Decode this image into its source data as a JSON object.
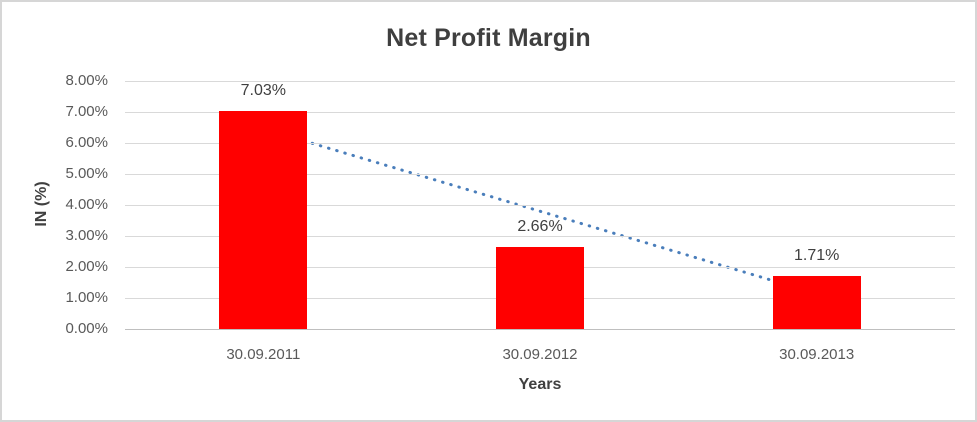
{
  "chart_data": {
    "type": "bar",
    "title": "Net Profit Margin",
    "xlabel": "Years",
    "ylabel": "IN (%)",
    "categories": [
      "30.09.2011",
      "30.09.2012",
      "30.09.2013"
    ],
    "values": [
      7.03,
      2.66,
      1.71
    ],
    "data_labels": [
      "7.03%",
      "2.66%",
      "1.71%"
    ],
    "ylim": [
      0,
      8
    ],
    "ytick_labels": [
      "8.00%",
      "7.00%",
      "6.00%",
      "5.00%",
      "4.00%",
      "3.00%",
      "2.00%",
      "1.00%",
      "0.00%"
    ],
    "grid": "horizontal",
    "legend": "none",
    "bar_color": "#ff0000",
    "trendline": {
      "type": "linear",
      "style": "dotted",
      "color": "#4a7ebb",
      "start_value": 6.46,
      "end_value": 1.14
    }
  }
}
